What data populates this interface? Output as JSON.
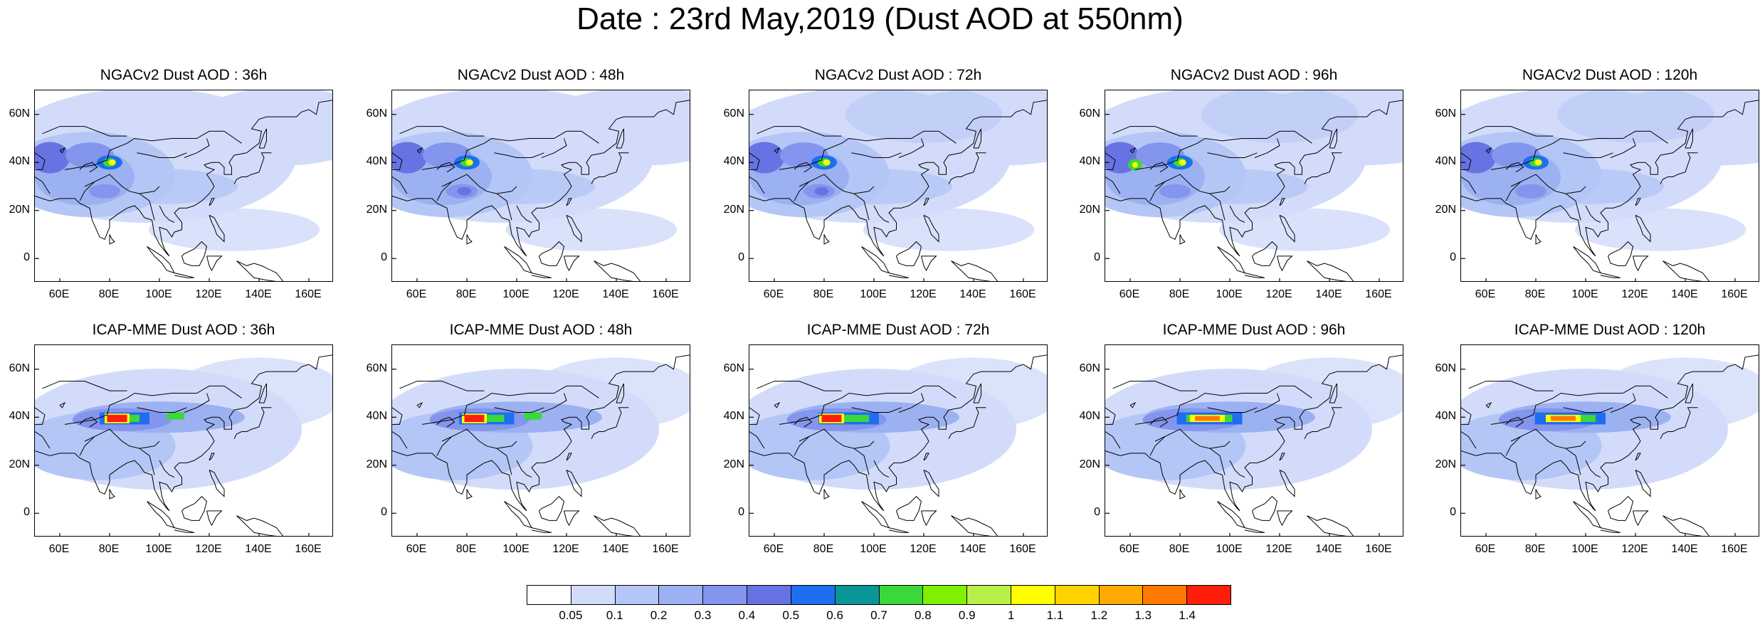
{
  "title": "Date : 23rd May,2019 (Dust AOD at 550nm)",
  "axes": {
    "y_ticks": [
      "60N",
      "40N",
      "20N",
      "0"
    ],
    "y_values": [
      60,
      40,
      20,
      0
    ],
    "x_ticks": [
      "60E",
      "80E",
      "100E",
      "120E",
      "140E",
      "160E"
    ],
    "x_values": [
      60,
      80,
      100,
      120,
      140,
      160
    ],
    "lon_range": [
      50,
      170
    ],
    "lat_range": [
      -10,
      70
    ]
  },
  "panels": [
    {
      "title": "NGACv2 Dust AOD : 36h"
    },
    {
      "title": "NGACv2 Dust AOD : 48h"
    },
    {
      "title": "NGACv2 Dust AOD : 72h"
    },
    {
      "title": "NGACv2 Dust AOD : 96h"
    },
    {
      "title": "NGACv2 Dust AOD : 120h"
    },
    {
      "title": "ICAP-MME Dust AOD : 36h"
    },
    {
      "title": "ICAP-MME Dust AOD : 48h"
    },
    {
      "title": "ICAP-MME Dust AOD : 72h"
    },
    {
      "title": "ICAP-MME Dust AOD : 96h"
    },
    {
      "title": "ICAP-MME Dust AOD : 120h"
    }
  ],
  "colorbar": {
    "colors": [
      "#ffffff",
      "#d2dcfa",
      "#b4c6f5",
      "#9cb1f1",
      "#8395ec",
      "#6873e3",
      "#1e6ef0",
      "#0a9696",
      "#3ad83a",
      "#7ef000",
      "#b8f04a",
      "#ffff00",
      "#ffd200",
      "#ffaa00",
      "#ff7800",
      "#ff1e0a"
    ],
    "labels": [
      "0.05",
      "0.1",
      "0.2",
      "0.3",
      "0.4",
      "0.5",
      "0.6",
      "0.7",
      "0.8",
      "0.9",
      "1",
      "1.1",
      "1.2",
      "1.3",
      "1.4"
    ]
  }
}
